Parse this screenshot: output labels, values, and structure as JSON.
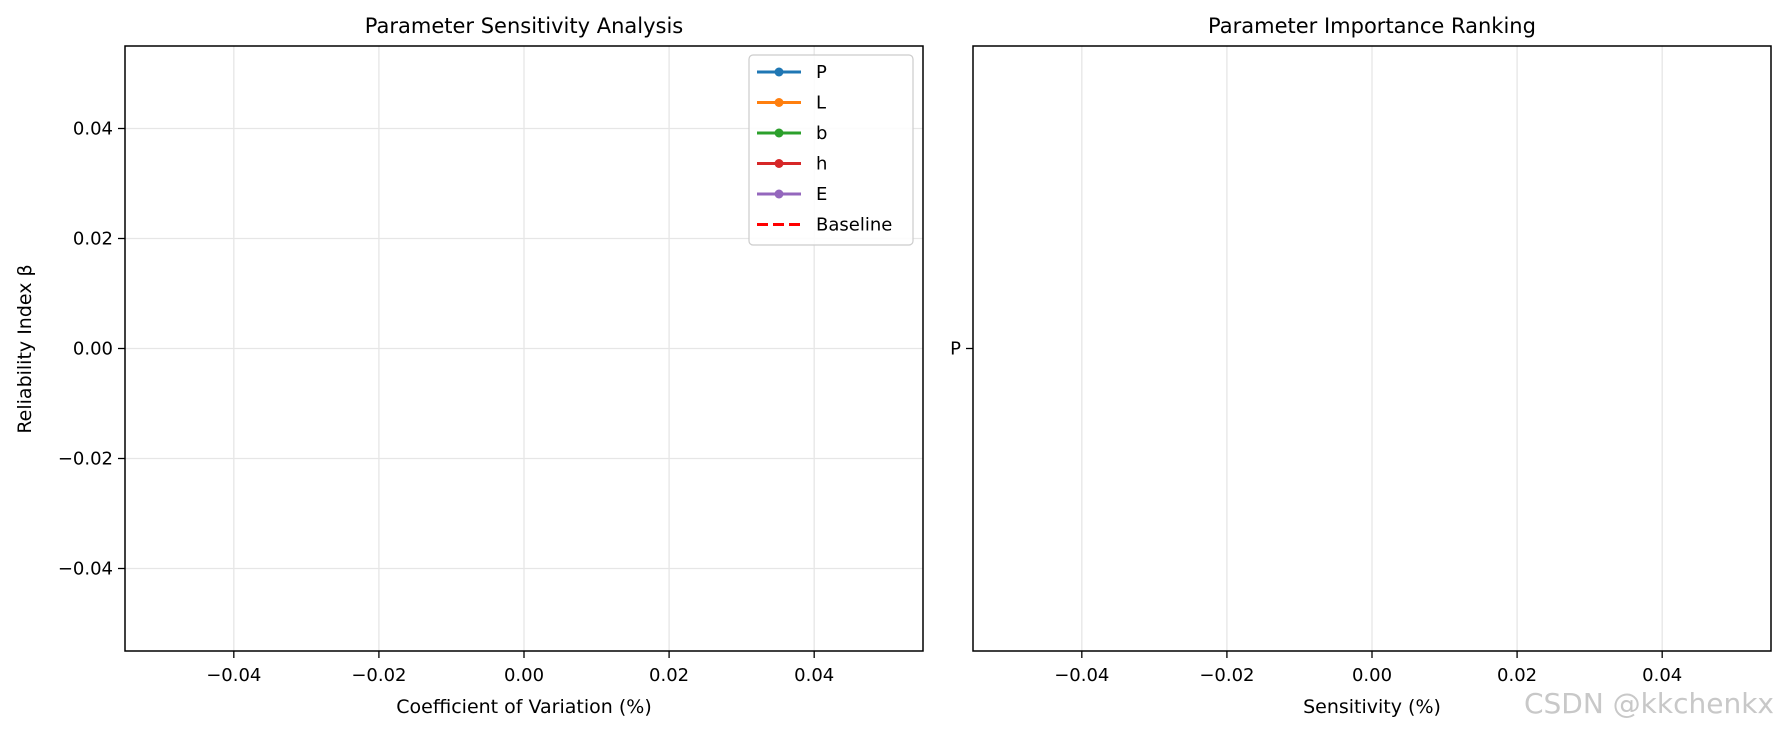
{
  "chart_data": [
    {
      "type": "line",
      "title": "Parameter Sensitivity Analysis",
      "xlabel": "Coefficient of Variation (%)",
      "ylabel": "Reliability Index β",
      "xlim": [
        -0.055,
        0.055
      ],
      "ylim": [
        -0.055,
        0.055
      ],
      "xticks": [
        -0.04,
        -0.02,
        0.0,
        0.02,
        0.04
      ],
      "xtick_labels": [
        "−0.04",
        "−0.02",
        "0.00",
        "0.02",
        "0.04"
      ],
      "yticks": [
        0.04,
        0.02,
        0.0,
        -0.02,
        -0.04
      ],
      "ytick_labels": [
        "0.04",
        "0.02",
        "0.00",
        "−0.02",
        "−0.04"
      ],
      "grid": true,
      "legend_position": "top-right",
      "series": [
        {
          "name": "P",
          "color": "#1f77b4",
          "style": "solid-marker",
          "x": [],
          "values": []
        },
        {
          "name": "L",
          "color": "#ff7f0e",
          "style": "solid-marker",
          "x": [],
          "values": []
        },
        {
          "name": "b",
          "color": "#2ca02c",
          "style": "solid-marker",
          "x": [],
          "values": []
        },
        {
          "name": "h",
          "color": "#d62728",
          "style": "solid-marker",
          "x": [],
          "values": []
        },
        {
          "name": "E",
          "color": "#9467bd",
          "style": "solid-marker",
          "x": [],
          "values": []
        },
        {
          "name": "Baseline",
          "color": "#ff0000",
          "style": "dashed",
          "x": [],
          "values": []
        }
      ]
    },
    {
      "type": "bar",
      "orientation": "horizontal",
      "title": "Parameter Importance Ranking",
      "xlabel": "Sensitivity (%)",
      "ylabel": "",
      "xlim": [
        -0.055,
        0.055
      ],
      "xticks": [
        -0.04,
        -0.02,
        0.0,
        0.02,
        0.04
      ],
      "xtick_labels": [
        "−0.04",
        "−0.02",
        "0.00",
        "0.02",
        "0.04"
      ],
      "categories": [
        "P"
      ],
      "values": [
        0
      ],
      "grid": true
    }
  ],
  "watermark": "CSDN @kkchenkx"
}
